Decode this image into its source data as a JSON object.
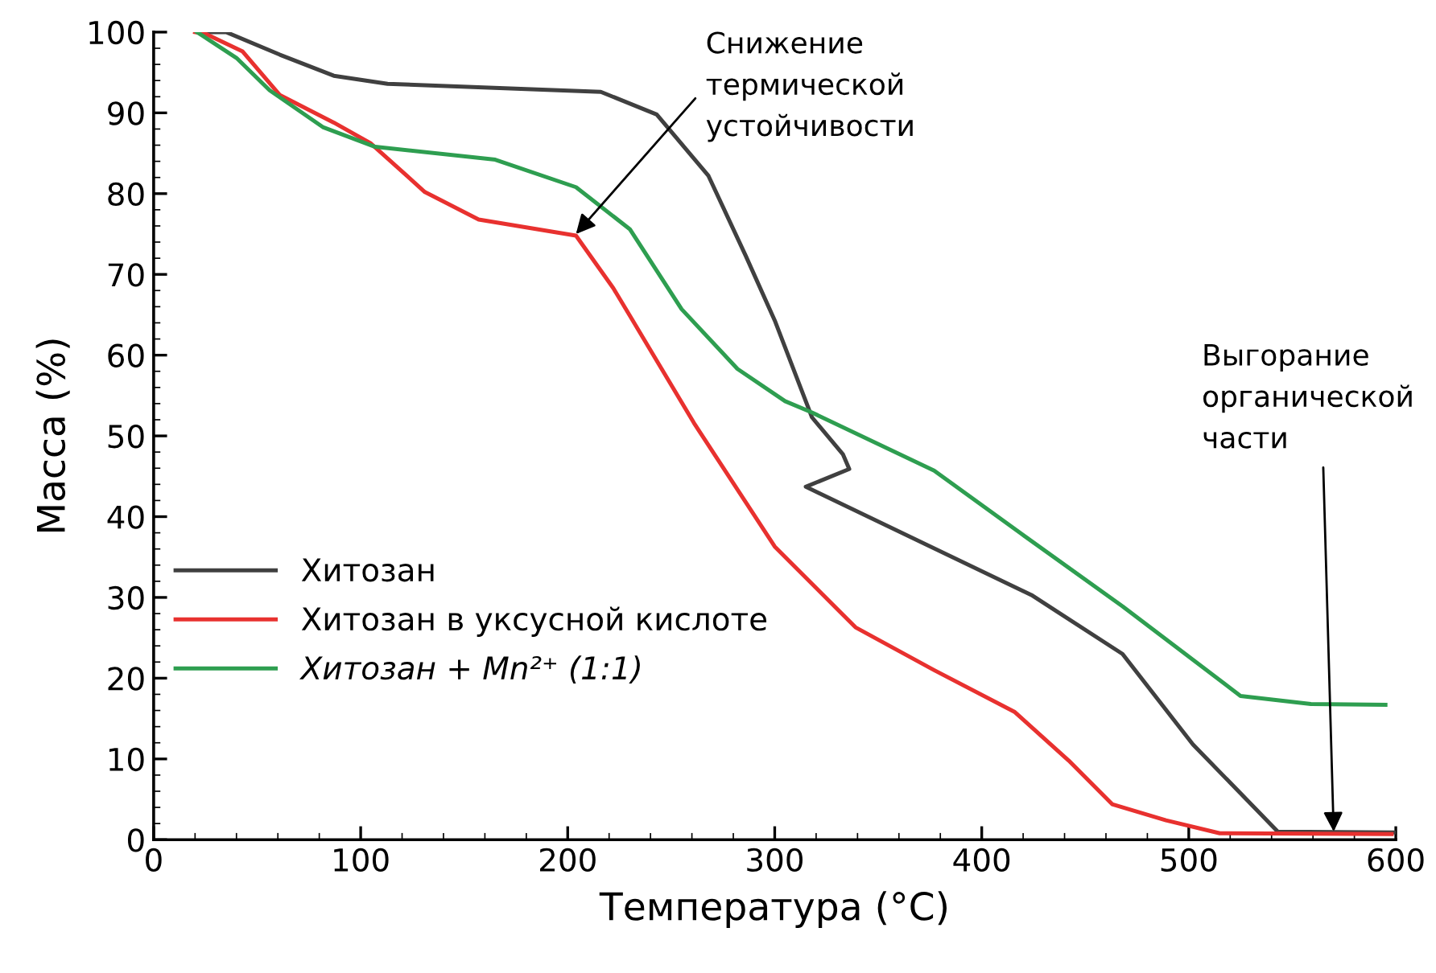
{
  "chart_data": {
    "type": "line",
    "xlabel": "Температура (°C)",
    "ylabel": "Масса (%)",
    "xlim": [
      0,
      600
    ],
    "xticks": [
      0,
      100,
      200,
      300,
      400,
      500,
      600
    ],
    "ylim": [
      0,
      100
    ],
    "yticks": [
      0,
      10,
      20,
      30,
      40,
      50,
      60,
      70,
      80,
      90,
      100
    ],
    "grid": false,
    "legend": "left",
    "line_style": "solid",
    "marker": "none",
    "series": [
      {
        "name": "Хитозан",
        "color": "#404040",
        "x": [
          21.8,
          35,
          61,
          87,
          113,
          216,
          243,
          268,
          286,
          300,
          318,
          333,
          336,
          315,
          424,
          468,
          502,
          543,
          600
        ],
        "values": [
          100,
          100,
          97.2,
          94.6,
          93.6,
          92.6,
          89.8,
          82.2,
          72.3,
          64.3,
          52.3,
          47.7,
          45.9,
          43.7,
          30.3,
          23,
          11.8,
          1,
          0.9
        ]
      },
      {
        "name": "Хитозан в уксусной кислоте",
        "color": "#e8312f",
        "x": [
          20,
          25,
          43,
          61,
          87,
          105,
          131,
          157,
          204,
          222,
          230,
          261,
          300,
          339,
          377,
          416,
          442,
          463,
          489,
          515,
          598
        ],
        "values": [
          100,
          99.8,
          97.6,
          92.2,
          88.8,
          86.2,
          80.2,
          76.8,
          74.8,
          68.3,
          64.9,
          51.6,
          36.3,
          26.3,
          21,
          15.8,
          9.8,
          4.4,
          2.4,
          0.8,
          0.7
        ]
      },
      {
        "name": "Хитозан + Mn²⁺ (1:1)",
        "color": "#2e9e50",
        "x": [
          21,
          40,
          56,
          82,
          107,
          165,
          204,
          230,
          255,
          282,
          305,
          318,
          377,
          419,
          468,
          525,
          559,
          595
        ],
        "values": [
          100,
          96.8,
          92.8,
          88.2,
          85.8,
          84.2,
          80.8,
          75.6,
          65.7,
          58.3,
          54.3,
          52.9,
          45.7,
          37.9,
          28.9,
          17.8,
          16.8,
          16.7
        ]
      }
    ],
    "annotations": [
      {
        "text": "Снижение\nтермической\nустойчивости",
        "x": 204,
        "y": 75
      },
      {
        "text": "Выгорание\nорганической\nчасти",
        "x": 570,
        "y": 1
      }
    ]
  }
}
